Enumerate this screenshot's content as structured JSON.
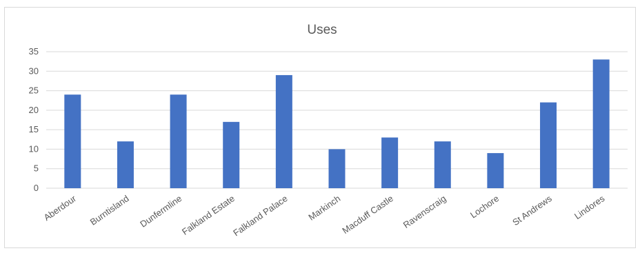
{
  "chart_data": {
    "type": "bar",
    "title": "Uses",
    "categories": [
      "Aberdour",
      "Burntisland",
      "Dunfermline",
      "Falkland Estate",
      "Falkland Palace",
      "Markinch",
      "Macduff Castle",
      "Ravenscraig",
      "Lochore",
      "St Andrews",
      "Lindores"
    ],
    "series": [
      {
        "values": [
          24,
          12,
          24,
          17,
          29,
          10,
          13,
          12,
          9,
          22,
          33
        ]
      }
    ],
    "ylim": [
      0,
      35
    ],
    "yticks": [
      0,
      5,
      10,
      15,
      20,
      25,
      30,
      35
    ],
    "grid": true,
    "legend": "none",
    "bar_color": "#4472c4",
    "grid_color": "#d9d9d9",
    "text_color": "#595959"
  }
}
